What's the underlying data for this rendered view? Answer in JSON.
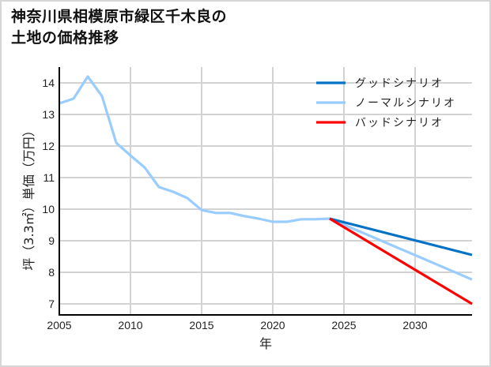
{
  "title": "神奈川県相模原市緑区千木良の\n土地の価格推移",
  "chart_data": {
    "type": "line",
    "title": "神奈川県相模原市緑区千木良の土地の価格推移",
    "xlabel": "年",
    "ylabel": "坪（3.3㎡）単価（万円）",
    "xlim": [
      2005,
      2034
    ],
    "ylim": [
      6.65,
      14.5
    ],
    "xticks": [
      2005,
      2010,
      2015,
      2020,
      2025,
      2030
    ],
    "yticks": [
      7,
      8,
      9,
      10,
      11,
      12,
      13,
      14
    ],
    "grid": true,
    "legend_position": "upper right",
    "series": [
      {
        "name": "グッドシナリオ",
        "color": "#0072c6",
        "x": [
          2024,
          2034
        ],
        "values": [
          9.7,
          8.55
        ]
      },
      {
        "name": "ノーマルシナリオ",
        "color": "#99ccff",
        "x": [
          2005,
          2006,
          2007,
          2008,
          2009,
          2010,
          2011,
          2012,
          2013,
          2014,
          2015,
          2016,
          2017,
          2018,
          2019,
          2020,
          2021,
          2022,
          2023,
          2024,
          2034
        ],
        "values": [
          13.35,
          13.5,
          14.2,
          13.58,
          12.1,
          11.7,
          11.32,
          10.7,
          10.55,
          10.35,
          9.97,
          9.88,
          9.88,
          9.78,
          9.7,
          9.6,
          9.6,
          9.68,
          9.68,
          9.7,
          7.77
        ]
      },
      {
        "name": "バッドシナリオ",
        "color": "#ff0000",
        "x": [
          2024,
          2034
        ],
        "values": [
          9.7,
          7.0
        ]
      }
    ]
  }
}
